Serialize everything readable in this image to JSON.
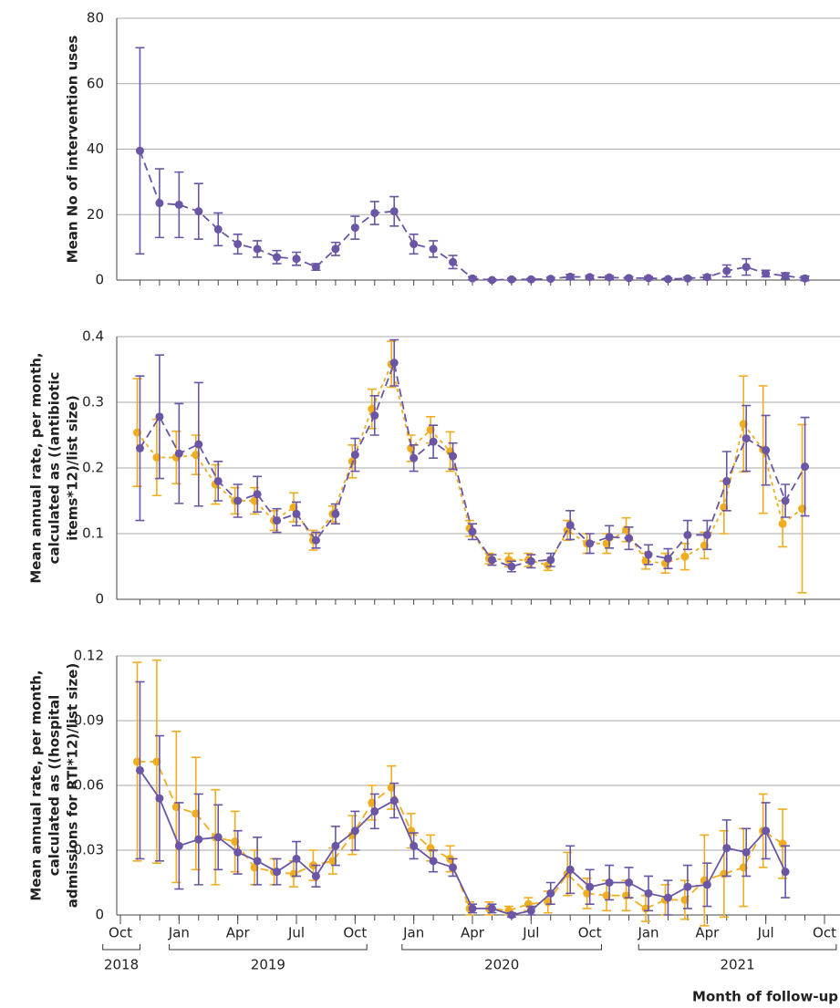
{
  "chart_data": [
    {
      "type": "line",
      "ylabel": [
        "Mean No of intervention uses"
      ],
      "x": [
        1,
        2,
        3,
        4,
        5,
        6,
        7,
        8,
        9,
        10,
        11,
        12,
        13,
        14,
        15,
        16,
        17,
        18,
        19,
        20,
        21,
        22,
        23,
        24,
        25,
        26,
        27,
        28,
        29,
        30,
        31,
        32,
        33,
        34,
        35
      ],
      "xlim": [
        0,
        36
      ],
      "ylim": [
        0,
        80
      ],
      "yticks": [
        0,
        20,
        40,
        60,
        80
      ],
      "grid": true,
      "series": [
        {
          "color": "#6a56a5",
          "line_style": "dashed",
          "values": [
            39.5,
            23.5,
            23,
            21,
            15.5,
            11,
            9.5,
            7,
            6.5,
            4,
            9.5,
            16,
            20.5,
            21,
            11,
            9.5,
            5.5,
            0.5,
            0,
            0.2,
            0.2,
            0.4,
            1,
            0.9,
            0.8,
            0.6,
            0.6,
            0.3,
            0.5,
            0.9,
            2.8,
            4,
            2,
            1.3,
            0.5
          ],
          "errors": [
            31.5,
            10.5,
            10,
            8.5,
            5,
            3,
            2.5,
            2,
            2,
            1,
            2,
            3.5,
            3.5,
            4.5,
            3,
            2.5,
            2,
            0.5,
            0.3,
            0.3,
            0.3,
            0.4,
            0.7,
            0.5,
            0.5,
            0.4,
            0.4,
            0.3,
            0.4,
            0.7,
            1.8,
            2.5,
            1,
            0.9,
            0.7
          ]
        }
      ]
    },
    {
      "type": "line",
      "ylabel": [
        "Mean annual rate, per month,",
        "calculated as ((antibiotic",
        "items*12)/list size)"
      ],
      "x": [
        1,
        2,
        3,
        4,
        5,
        6,
        7,
        8,
        9,
        10,
        11,
        12,
        13,
        14,
        15,
        16,
        17,
        18,
        19,
        20,
        21,
        22,
        23,
        24,
        25,
        26,
        27,
        28,
        29,
        30,
        31,
        32,
        33,
        34,
        35
      ],
      "xlim": [
        0,
        36
      ],
      "ylim": [
        0,
        0.4
      ],
      "yticks": [
        0,
        0.1,
        0.2,
        0.3,
        0.4
      ],
      "grid": true,
      "series": [
        {
          "color": "#f0ad1f",
          "line_style": "dotted",
          "values": [
            0.254,
            0.216,
            0.216,
            0.22,
            0.175,
            0.15,
            0.15,
            0.12,
            0.14,
            0.09,
            0.13,
            0.21,
            0.29,
            0.358,
            0.23,
            0.258,
            0.225,
            0.108,
            0.062,
            0.06,
            0.06,
            0.052,
            0.105,
            0.085,
            0.085,
            0.106,
            0.058,
            0.055,
            0.065,
            0.082,
            0.14,
            0.267,
            0.228,
            0.115,
            0.138
          ],
          "errors": [
            0.082,
            0.058,
            0.04,
            0.03,
            0.03,
            0.02,
            0.02,
            0.015,
            0.022,
            0.015,
            0.012,
            0.025,
            0.03,
            0.035,
            0.02,
            0.02,
            0.03,
            0.012,
            0.008,
            0.01,
            0.01,
            0.008,
            0.015,
            0.015,
            0.015,
            0.018,
            0.012,
            0.015,
            0.02,
            0.02,
            0.04,
            0.073,
            0.097,
            0.035,
            0.128
          ]
        },
        {
          "color": "#6a56a5",
          "line_style": "dashed",
          "values": [
            0.23,
            0.278,
            0.222,
            0.236,
            0.18,
            0.15,
            0.16,
            0.12,
            0.13,
            0.09,
            0.13,
            0.22,
            0.28,
            0.36,
            0.215,
            0.24,
            0.218,
            0.103,
            0.06,
            0.05,
            0.058,
            0.06,
            0.113,
            0.085,
            0.095,
            0.093,
            0.068,
            0.062,
            0.098,
            0.098,
            0.18,
            0.245,
            0.227,
            0.15,
            0.202
          ],
          "errors": [
            0.11,
            0.094,
            0.076,
            0.094,
            0.03,
            0.025,
            0.027,
            0.018,
            0.018,
            0.012,
            0.015,
            0.025,
            0.03,
            0.035,
            0.02,
            0.025,
            0.02,
            0.012,
            0.008,
            0.008,
            0.01,
            0.01,
            0.022,
            0.015,
            0.017,
            0.017,
            0.015,
            0.015,
            0.022,
            0.022,
            0.045,
            0.05,
            0.053,
            0.025,
            0.075
          ]
        }
      ]
    },
    {
      "type": "line",
      "ylabel": [
        "Mean annual rate, per month,",
        "calculated as ((hospital",
        "admissions for RTI*12)/list size)"
      ],
      "x": [
        1,
        2,
        3,
        4,
        5,
        6,
        7,
        8,
        9,
        10,
        11,
        12,
        13,
        14,
        15,
        16,
        17,
        18,
        19,
        20,
        21,
        22,
        23,
        24,
        25,
        26,
        27,
        28,
        29,
        30,
        31,
        32,
        33,
        34,
        35
      ],
      "xlim": [
        0,
        36
      ],
      "ylim": [
        0,
        0.12
      ],
      "yticks": [
        0,
        0.03,
        0.06,
        0.09,
        0.12
      ],
      "grid": true,
      "xticks": [
        {
          "value": 0,
          "label": "Oct"
        },
        {
          "value": 3,
          "label": "Jan"
        },
        {
          "value": 6,
          "label": "Apr"
        },
        {
          "value": 9,
          "label": "Jul"
        },
        {
          "value": 12,
          "label": "Oct"
        },
        {
          "value": 15,
          "label": "Jan"
        },
        {
          "value": 18,
          "label": "Apr"
        },
        {
          "value": 21,
          "label": "Jul"
        },
        {
          "value": 24,
          "label": "Oct"
        },
        {
          "value": 27,
          "label": "Jan"
        },
        {
          "value": 30,
          "label": "Apr"
        },
        {
          "value": 33,
          "label": "Jul"
        },
        {
          "value": 36,
          "label": "Oct"
        }
      ],
      "years": [
        "2018",
        "2019",
        "2020",
        "2021"
      ],
      "xlabel": "Month of follow-up",
      "series": [
        {
          "color": "#f0ad1f",
          "line_style": "dashed",
          "values": [
            0.071,
            0.071,
            0.05,
            0.047,
            0.036,
            0.034,
            0.022,
            0.02,
            0.019,
            0.023,
            0.025,
            0.037,
            0.052,
            0.059,
            0.039,
            0.031,
            0.026,
            0.003,
            0.003,
            0.002,
            0.005,
            0.006,
            0.019,
            0.01,
            0.009,
            0.009,
            0.003,
            0.007,
            0.007,
            0.016,
            0.019,
            0.022,
            0.039,
            0.033,
            null
          ],
          "errors": [
            0.046,
            0.047,
            0.035,
            0.026,
            0.022,
            0.014,
            0.008,
            0.006,
            0.006,
            0.007,
            0.006,
            0.009,
            0.008,
            0.01,
            0.008,
            0.006,
            0.006,
            0.003,
            0.003,
            0.002,
            0.003,
            0.005,
            0.01,
            0.007,
            0.007,
            0.007,
            0.006,
            0.007,
            0.009,
            0.021,
            0.02,
            0.018,
            0.017,
            0.016,
            null
          ]
        },
        {
          "color": "#6a56a5",
          "line_style": "solid",
          "values": [
            0.067,
            0.054,
            0.032,
            0.035,
            0.036,
            0.029,
            0.025,
            0.02,
            0.026,
            0.018,
            0.032,
            0.039,
            0.048,
            0.053,
            0.032,
            0.025,
            0.022,
            0.003,
            0.003,
            0,
            0.002,
            0.01,
            0.021,
            0.013,
            0.015,
            0.015,
            0.01,
            0.008,
            0.013,
            0.014,
            0.031,
            0.029,
            0.039,
            0.02,
            null
          ],
          "errors": [
            0.041,
            0.029,
            0.02,
            0.021,
            0.015,
            0.01,
            0.011,
            0.006,
            0.008,
            0.005,
            0.009,
            0.009,
            0.008,
            0.008,
            0.006,
            0.005,
            0.004,
            0.002,
            0.002,
            0.001,
            0.002,
            0.005,
            0.011,
            0.008,
            0.008,
            0.007,
            0.008,
            0.008,
            0.01,
            0.01,
            0.013,
            0.011,
            0.013,
            0.012,
            null
          ]
        }
      ]
    }
  ]
}
